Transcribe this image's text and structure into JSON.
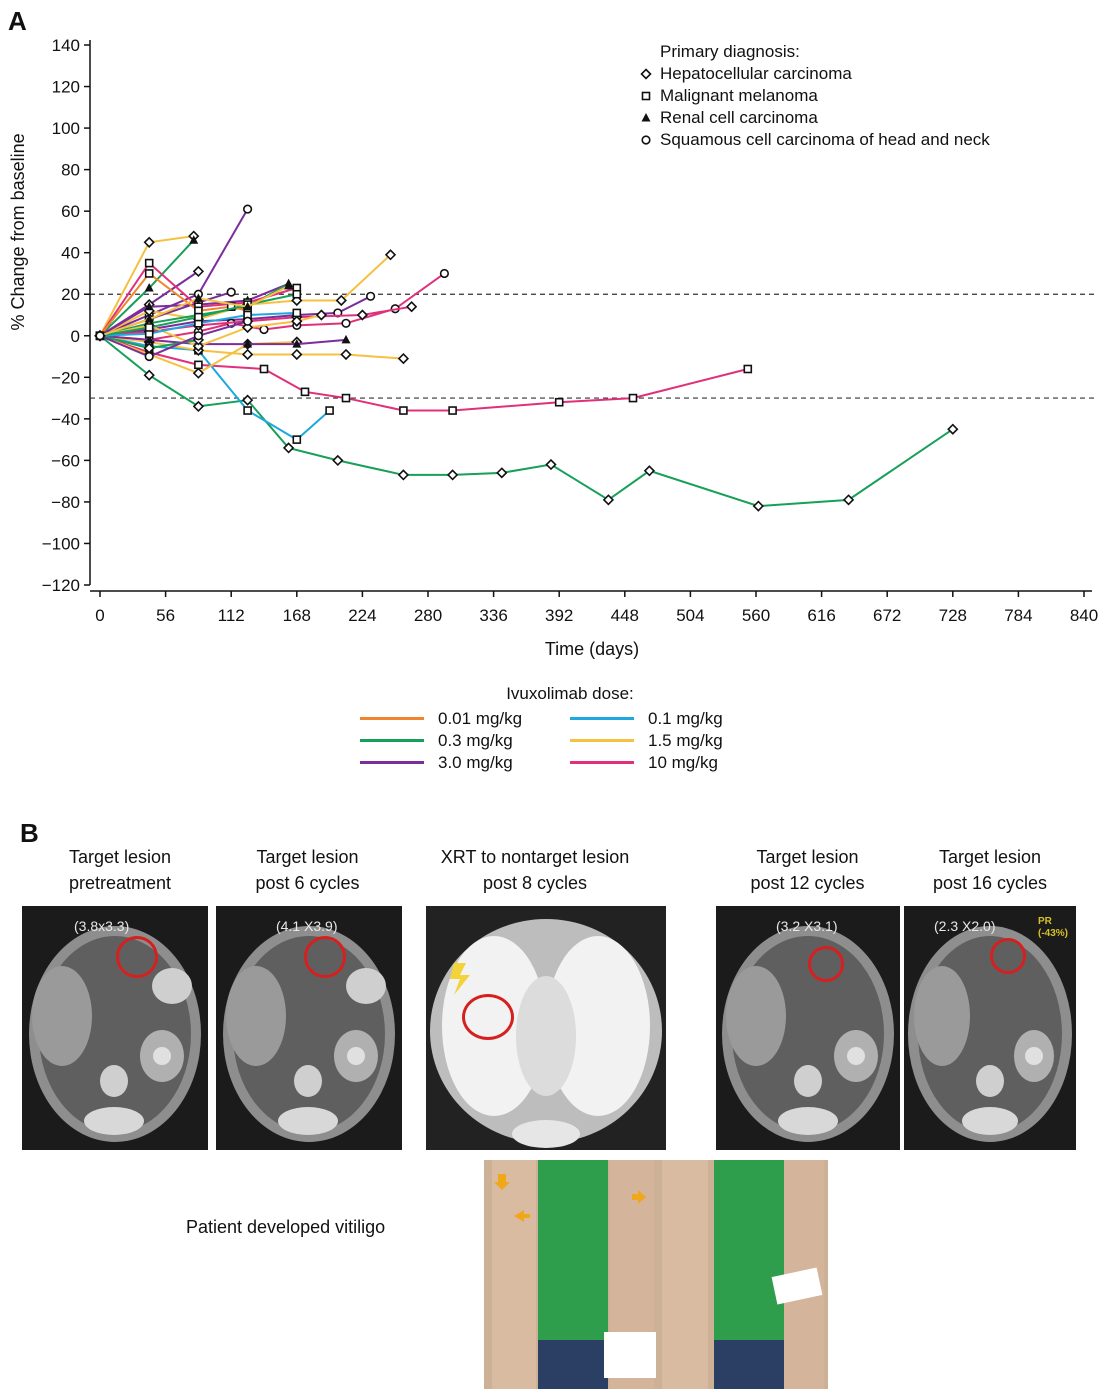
{
  "panel_a_letter": "A",
  "panel_b_letter": "B",
  "chart_data": {
    "type": "line",
    "title": "",
    "xlabel": "Time (days)",
    "ylabel": "% Change from baseline",
    "xlim": [
      0,
      840
    ],
    "ylim": [
      -120,
      140
    ],
    "x_ticks": [
      "0",
      "56",
      "112",
      "168",
      "224",
      "280",
      "336",
      "392",
      "448",
      "504",
      "560",
      "616",
      "672",
      "728",
      "784",
      "840"
    ],
    "y_ticks": [
      "140",
      "120",
      "100",
      "80",
      "60",
      "40",
      "20",
      "0",
      "−20",
      "−40",
      "−60",
      "−80",
      "−100",
      "−120"
    ],
    "reference_lines": [
      20,
      -30
    ],
    "marker_legend": {
      "title": "Primary diagnosis:",
      "items": [
        {
          "label": "Hepatocellular carcinoma",
          "marker": "diamond"
        },
        {
          "label": "Malignant melanoma",
          "marker": "square"
        },
        {
          "label": "Renal cell carcinoma",
          "marker": "triangle"
        },
        {
          "label": "Squamous cell carcinoma of head and neck",
          "marker": "circle"
        }
      ]
    },
    "dose_legend": {
      "title": "Ivuxolimab dose:",
      "items": [
        {
          "label": "0.01 mg/kg",
          "color": "#f0852d"
        },
        {
          "label": "0.1 mg/kg",
          "color": "#1fa8e0"
        },
        {
          "label": "0.3 mg/kg",
          "color": "#16a05a"
        },
        {
          "label": "1.5 mg/kg",
          "color": "#f6c040"
        },
        {
          "label": "3.0 mg/kg",
          "color": "#7b2d9b"
        },
        {
          "label": "10 mg/kg",
          "color": "#e0307a"
        }
      ]
    },
    "series": [
      {
        "dose": "0.3 mg/kg",
        "color": "#16a05a",
        "marker": "diamond",
        "points": [
          [
            0,
            0
          ],
          [
            42,
            -19
          ],
          [
            84,
            -34
          ],
          [
            126,
            -31
          ],
          [
            161,
            -54
          ],
          [
            203,
            -60
          ],
          [
            259,
            -67
          ],
          [
            301,
            -67
          ],
          [
            343,
            -66
          ],
          [
            385,
            -62
          ],
          [
            434,
            -79
          ],
          [
            469,
            -65
          ],
          [
            562,
            -82
          ],
          [
            639,
            -79
          ],
          [
            728,
            -45
          ]
        ]
      },
      {
        "dose": "10 mg/kg",
        "color": "#e0307a",
        "marker": "square",
        "points": [
          [
            0,
            0
          ],
          [
            42,
            -8
          ],
          [
            84,
            -14
          ],
          [
            140,
            -16
          ],
          [
            175,
            -27
          ],
          [
            210,
            -30
          ],
          [
            259,
            -36
          ],
          [
            301,
            -36
          ],
          [
            392,
            -32
          ],
          [
            455,
            -30
          ],
          [
            553,
            -16
          ]
        ]
      },
      {
        "dose": "0.1 mg/kg",
        "color": "#1fa8e0",
        "marker": "square",
        "points": [
          [
            0,
            0
          ],
          [
            42,
            -5
          ],
          [
            84,
            -7
          ],
          [
            126,
            -36
          ],
          [
            168,
            -50
          ],
          [
            196,
            -36
          ]
        ]
      },
      {
        "dose": "1.5 mg/kg",
        "color": "#f6c040",
        "marker": "diamond",
        "points": [
          [
            0,
            0
          ],
          [
            42,
            45
          ],
          [
            80,
            48
          ]
        ]
      },
      {
        "dose": "0.3 mg/kg",
        "color": "#16a05a",
        "marker": "triangle",
        "points": [
          [
            0,
            0
          ],
          [
            42,
            23
          ],
          [
            80,
            46
          ]
        ]
      },
      {
        "dose": "3.0 mg/kg",
        "color": "#7b2d9b",
        "marker": "circle",
        "points": [
          [
            0,
            0
          ],
          [
            42,
            10
          ],
          [
            84,
            20
          ],
          [
            126,
            61
          ]
        ]
      },
      {
        "dose": "3.0 mg/kg",
        "color": "#7b2d9b",
        "marker": "diamond",
        "points": [
          [
            0,
            0
          ],
          [
            42,
            15
          ],
          [
            84,
            31
          ]
        ]
      },
      {
        "dose": "1.5 mg/kg",
        "color": "#f6c040",
        "marker": "diamond",
        "points": [
          [
            0,
            0
          ],
          [
            42,
            12
          ],
          [
            84,
            8
          ],
          [
            126,
            15
          ],
          [
            168,
            17
          ],
          [
            206,
            17
          ],
          [
            248,
            39
          ]
        ]
      },
      {
        "dose": "3.0 mg/kg",
        "color": "#7b2d9b",
        "marker": "circle",
        "points": [
          [
            0,
            0
          ],
          [
            42,
            8
          ],
          [
            84,
            16
          ],
          [
            112,
            21
          ]
        ]
      },
      {
        "dose": "3.0 mg/kg",
        "color": "#7b2d9b",
        "marker": "triangle",
        "points": [
          [
            0,
            0
          ],
          [
            42,
            14
          ],
          [
            84,
            15
          ],
          [
            126,
            17
          ],
          [
            161,
            25
          ]
        ]
      },
      {
        "dose": "0.3 mg/kg",
        "color": "#16a05a",
        "marker": "triangle",
        "points": [
          [
            0,
            0
          ],
          [
            42,
            6
          ],
          [
            84,
            10
          ],
          [
            126,
            14
          ],
          [
            161,
            25
          ]
        ]
      },
      {
        "dose": "10 mg/kg",
        "color": "#e0307a",
        "marker": "square",
        "points": [
          [
            0,
            0
          ],
          [
            42,
            35
          ],
          [
            84,
            14
          ],
          [
            126,
            16
          ],
          [
            168,
            23
          ]
        ]
      },
      {
        "dose": "3.0 mg/kg",
        "color": "#7b2d9b",
        "marker": "circle",
        "points": [
          [
            0,
            0
          ],
          [
            42,
            3
          ],
          [
            84,
            7
          ],
          [
            126,
            8
          ],
          [
            168,
            10
          ],
          [
            203,
            11
          ],
          [
            231,
            19
          ]
        ]
      },
      {
        "dose": "10 mg/kg",
        "color": "#e0307a",
        "marker": "circle",
        "points": [
          [
            0,
            0
          ],
          [
            42,
            -2
          ],
          [
            84,
            2
          ],
          [
            112,
            6
          ],
          [
            140,
            3
          ],
          [
            168,
            5
          ],
          [
            210,
            6
          ],
          [
            252,
            13
          ],
          [
            294,
            30
          ]
        ]
      },
      {
        "dose": "1.5 mg/kg",
        "color": "#f6c040",
        "marker": "diamond",
        "points": [
          [
            0,
            0
          ],
          [
            42,
            -3
          ],
          [
            84,
            -7
          ],
          [
            126,
            -9
          ],
          [
            168,
            -9
          ],
          [
            210,
            -9
          ],
          [
            259,
            -11
          ]
        ]
      },
      {
        "dose": "1.5 mg/kg",
        "color": "#f6c040",
        "marker": "diamond",
        "points": [
          [
            0,
            0
          ],
          [
            42,
            -9
          ],
          [
            84,
            -18
          ],
          [
            126,
            -4
          ],
          [
            168,
            -3
          ]
        ]
      },
      {
        "dose": "10 mg/kg",
        "color": "#e0307a",
        "marker": "diamond",
        "points": [
          [
            0,
            0
          ],
          [
            42,
            2
          ],
          [
            84,
            5
          ],
          [
            126,
            7
          ],
          [
            168,
            9
          ],
          [
            224,
            10
          ],
          [
            266,
            14
          ]
        ]
      },
      {
        "dose": "3.0 mg/kg",
        "color": "#7b2d9b",
        "marker": "triangle",
        "points": [
          [
            0,
            0
          ],
          [
            42,
            -2
          ],
          [
            84,
            -4
          ],
          [
            126,
            -4
          ],
          [
            168,
            -4
          ],
          [
            210,
            -2
          ]
        ]
      },
      {
        "dose": "1.5 mg/kg",
        "color": "#f6c040",
        "marker": "diamond",
        "points": [
          [
            0,
            0
          ],
          [
            42,
            5
          ],
          [
            84,
            -5
          ],
          [
            126,
            4
          ],
          [
            168,
            7
          ],
          [
            189,
            10
          ]
        ]
      },
      {
        "dose": "0.01 mg/kg",
        "color": "#f0852d",
        "marker": "square",
        "points": [
          [
            0,
            0
          ],
          [
            42,
            30
          ],
          [
            84,
            12
          ],
          [
            112,
            14
          ],
          [
            126,
            12
          ]
        ]
      },
      {
        "dose": "0.1 mg/kg",
        "color": "#1fa8e0",
        "marker": "square",
        "points": [
          [
            0,
            0
          ],
          [
            42,
            1
          ],
          [
            84,
            6
          ],
          [
            126,
            10
          ],
          [
            168,
            11
          ]
        ]
      },
      {
        "dose": "0.3 mg/kg",
        "color": "#16a05a",
        "marker": "square",
        "points": [
          [
            0,
            0
          ],
          [
            42,
            4
          ],
          [
            84,
            9
          ],
          [
            126,
            15
          ],
          [
            168,
            20
          ]
        ]
      },
      {
        "dose": "1.5 mg/kg",
        "color": "#f6c040",
        "marker": "triangle",
        "points": [
          [
            0,
            0
          ],
          [
            42,
            8
          ],
          [
            84,
            18
          ],
          [
            126,
            14
          ],
          [
            161,
            24
          ]
        ]
      },
      {
        "dose": "0.3 mg/kg",
        "color": "#16a05a",
        "marker": "diamond",
        "points": [
          [
            0,
            0
          ],
          [
            42,
            -6
          ],
          [
            84,
            -2
          ]
        ]
      },
      {
        "dose": "3.0 mg/kg",
        "color": "#7b2d9b",
        "marker": "circle",
        "points": [
          [
            0,
            0
          ],
          [
            42,
            -10
          ],
          [
            84,
            0
          ],
          [
            126,
            7
          ]
        ]
      }
    ]
  },
  "panel_b": {
    "captions": [
      {
        "line1": "Target lesion",
        "line2": "pretreatment"
      },
      {
        "line1": "Target lesion",
        "line2": "post 6 cycles"
      },
      {
        "line1": "XRT to nontarget lesion",
        "line2": "post 8 cycles"
      },
      {
        "line1": "Target lesion",
        "line2": "post 12 cycles"
      },
      {
        "line1": "Target lesion",
        "line2": "post 16 cycles"
      }
    ],
    "scan_labels": [
      "(3.8x3.3)",
      "(4.1 X3.9)",
      "(3.2 X3.1)",
      "(2.3 X2.0)"
    ],
    "pr_line1": "PR",
    "pr_line2": "(-43%)",
    "vitiligo_caption": "Patient developed vitiligo"
  }
}
